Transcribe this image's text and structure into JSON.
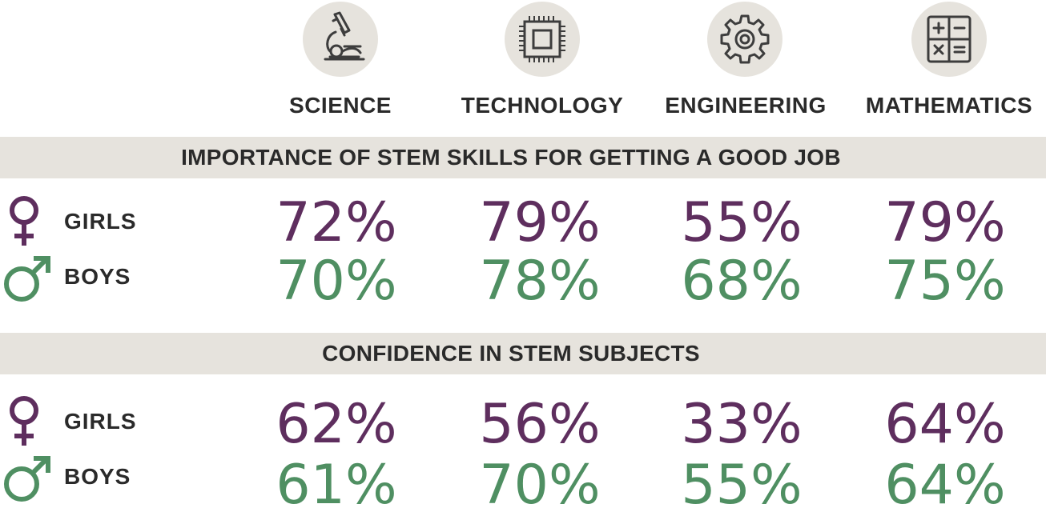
{
  "subjects": [
    {
      "label": "SCIENCE",
      "icon": "microscope-icon"
    },
    {
      "label": "TECHNOLOGY",
      "icon": "chip-icon"
    },
    {
      "label": "ENGINEERING",
      "icon": "gear-icon"
    },
    {
      "label": "MATHEMATICS",
      "icon": "calculator-icon"
    }
  ],
  "colors": {
    "girls": "#5e2e5e",
    "boys": "#4f8f62",
    "band": "#e6e3dd",
    "icon_stroke": "#3d3d3d"
  },
  "sections": [
    {
      "title": "IMPORTANCE OF STEM SKILLS FOR GETTING A GOOD JOB",
      "girls_label": "GIRLS",
      "boys_label": "BOYS",
      "girls": [
        "72%",
        "79%",
        "55%",
        "79%"
      ],
      "boys": [
        "70%",
        "78%",
        "68%",
        "75%"
      ]
    },
    {
      "title": "CONFIDENCE IN STEM SUBJECTS",
      "girls_label": "GIRLS",
      "boys_label": "BOYS",
      "girls": [
        "62%",
        "56%",
        "33%",
        "64%"
      ],
      "boys": [
        "61%",
        "70%",
        "55%",
        "64%"
      ]
    }
  ],
  "chart_data": {
    "type": "table",
    "categories": [
      "SCIENCE",
      "TECHNOLOGY",
      "ENGINEERING",
      "MATHEMATICS"
    ],
    "groups": [
      {
        "title": "IMPORTANCE OF STEM SKILLS FOR GETTING A GOOD JOB",
        "series": [
          {
            "name": "GIRLS",
            "values": [
              72,
              79,
              55,
              79
            ]
          },
          {
            "name": "BOYS",
            "values": [
              70,
              78,
              68,
              75
            ]
          }
        ]
      },
      {
        "title": "CONFIDENCE IN STEM SUBJECTS",
        "series": [
          {
            "name": "GIRLS",
            "values": [
              62,
              56,
              33,
              64
            ]
          },
          {
            "name": "BOYS",
            "values": [
              61,
              70,
              55,
              64
            ]
          }
        ]
      }
    ],
    "unit": "%"
  }
}
